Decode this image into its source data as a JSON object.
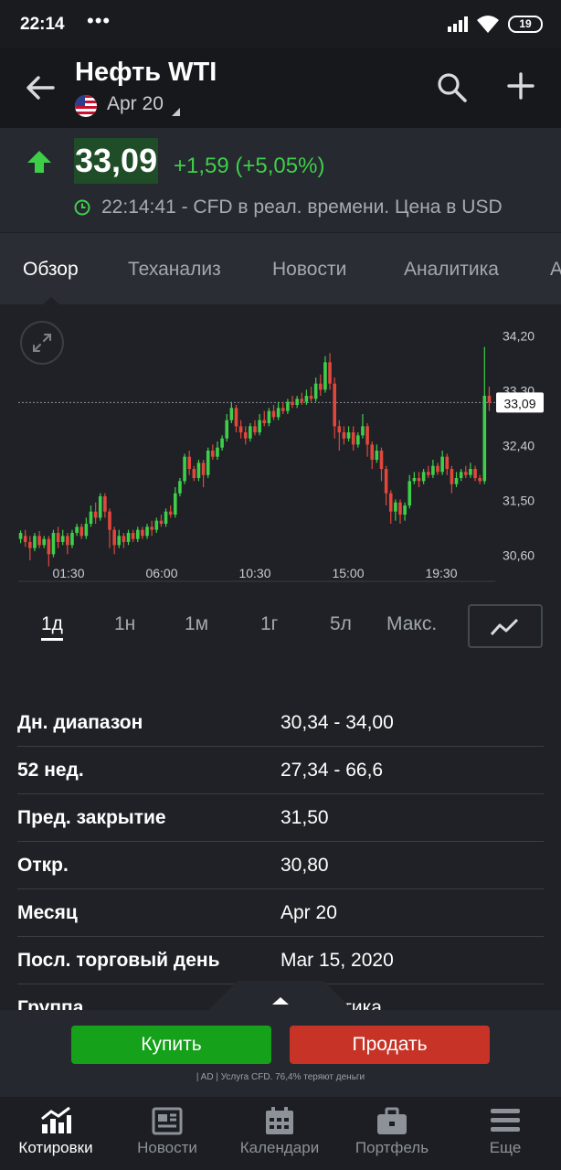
{
  "status_bar": {
    "time": "22:14",
    "dots": "•••",
    "battery": "19"
  },
  "header": {
    "title": "Нефть WTI",
    "contract": "Apr 20"
  },
  "quote": {
    "price": "33,09",
    "change": "+1,59 (+5,05%)",
    "timeline": "22:14:41 - CFD в реал. времени. Цена в USD"
  },
  "tabs": [
    {
      "label": "Обзор",
      "active": true
    },
    {
      "label": "Теханализ"
    },
    {
      "label": "Новости"
    },
    {
      "label": "Аналитика"
    },
    {
      "label": "А"
    }
  ],
  "chart_data": {
    "type": "candlestick",
    "y_tick_labels": [
      "34,20",
      "33,30",
      "32,40",
      "31,50",
      "30,60"
    ],
    "y_ticks": [
      34.2,
      33.3,
      32.4,
      31.5,
      30.6
    ],
    "ylim": [
      30.35,
      34.4
    ],
    "x_tick_labels": [
      "01:30",
      "06:00",
      "10:30",
      "15:00",
      "19:30"
    ],
    "last_price_label": "33,09",
    "last_price": 33.09,
    "candles": [
      [
        30.85,
        30.95,
        30.78,
        30.99
      ],
      [
        30.9,
        30.8,
        30.72,
        31.0
      ],
      [
        30.8,
        30.7,
        30.5,
        30.9
      ],
      [
        30.7,
        30.9,
        30.65,
        30.95
      ],
      [
        30.9,
        30.75,
        30.7,
        30.98
      ],
      [
        30.75,
        30.85,
        30.7,
        30.9
      ],
      [
        30.85,
        30.6,
        30.4,
        30.9
      ],
      [
        30.6,
        30.95,
        30.55,
        31.0
      ],
      [
        30.95,
        30.8,
        30.7,
        31.05
      ],
      [
        30.8,
        30.9,
        30.75,
        31.0
      ],
      [
        30.9,
        30.75,
        30.6,
        30.95
      ],
      [
        30.75,
        30.95,
        30.7,
        31.0
      ],
      [
        30.95,
        31.05,
        30.9,
        31.1
      ],
      [
        31.05,
        30.9,
        30.85,
        31.1
      ],
      [
        30.9,
        31.1,
        30.85,
        31.2
      ],
      [
        31.1,
        31.3,
        31.05,
        31.4
      ],
      [
        31.3,
        31.2,
        31.1,
        31.45
      ],
      [
        31.2,
        31.55,
        31.15,
        31.6
      ],
      [
        31.55,
        31.3,
        31.2,
        31.6
      ],
      [
        31.3,
        31.0,
        30.7,
        31.35
      ],
      [
        31.0,
        30.75,
        30.6,
        31.05
      ],
      [
        30.75,
        30.9,
        30.7,
        31.0
      ],
      [
        30.9,
        30.8,
        30.7,
        30.95
      ],
      [
        30.8,
        30.95,
        30.75,
        31.0
      ],
      [
        30.95,
        30.85,
        30.8,
        31.0
      ],
      [
        30.85,
        31.0,
        30.8,
        31.05
      ],
      [
        31.0,
        30.9,
        30.85,
        31.05
      ],
      [
        30.9,
        31.05,
        30.85,
        31.1
      ],
      [
        31.05,
        31.0,
        30.9,
        31.15
      ],
      [
        31.0,
        31.15,
        30.95,
        31.2
      ],
      [
        31.15,
        31.1,
        31.05,
        31.25
      ],
      [
        31.1,
        31.3,
        31.05,
        31.35
      ],
      [
        31.3,
        31.25,
        31.2,
        31.4
      ],
      [
        31.25,
        31.6,
        31.2,
        31.7
      ],
      [
        31.6,
        31.8,
        31.55,
        31.85
      ],
      [
        31.8,
        32.2,
        31.75,
        32.25
      ],
      [
        32.2,
        32.0,
        31.9,
        32.3
      ],
      [
        32.0,
        31.85,
        31.8,
        32.05
      ],
      [
        31.85,
        32.1,
        31.8,
        32.15
      ],
      [
        32.1,
        31.9,
        31.7,
        32.15
      ],
      [
        31.9,
        32.3,
        31.85,
        32.35
      ],
      [
        32.3,
        32.2,
        32.15,
        32.4
      ],
      [
        32.2,
        32.35,
        32.15,
        32.45
      ],
      [
        32.35,
        32.5,
        32.3,
        32.55
      ],
      [
        32.5,
        32.8,
        32.45,
        32.9
      ],
      [
        32.8,
        33.0,
        32.75,
        33.1
      ],
      [
        33.0,
        32.7,
        32.6,
        33.05
      ],
      [
        32.7,
        32.6,
        32.5,
        32.8
      ],
      [
        32.6,
        32.5,
        32.4,
        32.7
      ],
      [
        32.5,
        32.7,
        32.45,
        32.75
      ],
      [
        32.7,
        32.6,
        32.55,
        32.8
      ],
      [
        32.6,
        32.8,
        32.55,
        32.9
      ],
      [
        32.8,
        32.75,
        32.7,
        32.95
      ],
      [
        32.75,
        32.95,
        32.7,
        33.0
      ],
      [
        32.95,
        32.85,
        32.8,
        33.05
      ],
      [
        32.85,
        33.0,
        32.8,
        33.1
      ],
      [
        33.0,
        32.95,
        32.9,
        33.1
      ],
      [
        32.95,
        33.1,
        32.9,
        33.15
      ],
      [
        33.1,
        33.05,
        33.0,
        33.2
      ],
      [
        33.05,
        33.15,
        33.0,
        33.2
      ],
      [
        33.15,
        33.1,
        33.05,
        33.25
      ],
      [
        33.1,
        33.2,
        33.05,
        33.3
      ],
      [
        33.2,
        33.15,
        33.1,
        33.35
      ],
      [
        33.15,
        33.4,
        33.1,
        33.5
      ],
      [
        33.4,
        33.3,
        33.2,
        33.55
      ],
      [
        33.3,
        33.75,
        33.25,
        33.85
      ],
      [
        33.75,
        33.4,
        33.3,
        33.9
      ],
      [
        33.4,
        32.7,
        32.5,
        33.5
      ],
      [
        32.7,
        32.6,
        32.3,
        32.8
      ],
      [
        32.6,
        32.5,
        32.4,
        32.7
      ],
      [
        32.5,
        32.6,
        32.45,
        32.7
      ],
      [
        32.6,
        32.4,
        32.3,
        32.7
      ],
      [
        32.4,
        32.55,
        32.35,
        32.6
      ],
      [
        32.55,
        32.7,
        32.5,
        32.9
      ],
      [
        32.7,
        32.4,
        32.2,
        32.75
      ],
      [
        32.4,
        32.15,
        32.0,
        32.45
      ],
      [
        32.15,
        32.3,
        32.1,
        32.4
      ],
      [
        32.3,
        32.0,
        31.8,
        32.35
      ],
      [
        32.0,
        31.6,
        31.4,
        32.05
      ],
      [
        31.6,
        31.3,
        31.1,
        31.65
      ],
      [
        31.3,
        31.45,
        31.15,
        31.5
      ],
      [
        31.45,
        31.25,
        31.1,
        31.5
      ],
      [
        31.25,
        31.4,
        31.15,
        31.45
      ],
      [
        31.4,
        31.8,
        31.35,
        31.9
      ],
      [
        31.8,
        31.85,
        31.75,
        31.95
      ],
      [
        31.85,
        31.8,
        31.7,
        31.95
      ],
      [
        31.8,
        31.95,
        31.75,
        32.0
      ],
      [
        31.95,
        31.9,
        31.85,
        32.05
      ],
      [
        31.9,
        32.05,
        31.85,
        32.15
      ],
      [
        32.05,
        31.95,
        31.9,
        32.1
      ],
      [
        31.95,
        32.2,
        31.9,
        32.3
      ],
      [
        32.2,
        32.0,
        31.9,
        32.25
      ],
      [
        32.0,
        31.75,
        31.6,
        32.05
      ],
      [
        31.75,
        31.85,
        31.7,
        31.95
      ],
      [
        31.85,
        31.95,
        31.8,
        32.0
      ],
      [
        31.95,
        31.9,
        31.85,
        32.05
      ],
      [
        31.9,
        32.0,
        31.85,
        32.1
      ],
      [
        32.0,
        31.85,
        31.8,
        32.05
      ],
      [
        31.85,
        31.8,
        31.75,
        31.9
      ],
      [
        31.8,
        33.2,
        31.75,
        34.0
      ],
      [
        33.2,
        33.09,
        32.95,
        33.35
      ]
    ]
  },
  "ranges": [
    {
      "label": "1д",
      "active": true
    },
    {
      "label": "1н"
    },
    {
      "label": "1м"
    },
    {
      "label": "1г"
    },
    {
      "label": "5л"
    },
    {
      "label": "Макс."
    }
  ],
  "stats": [
    {
      "label": "Дн. диапазон",
      "value": "30,34 - 34,00"
    },
    {
      "label": "52 нед.",
      "value": "27,34 - 66,6"
    },
    {
      "label": "Пред. закрытие",
      "value": "31,50"
    },
    {
      "label": "Откр.",
      "value": "30,80"
    },
    {
      "label": "Месяц",
      "value": "Apr 20"
    },
    {
      "label": "Посл. торговый день",
      "value": "Mar 15, 2020"
    },
    {
      "label": "Группа",
      "value": "Энергетика"
    }
  ],
  "actions": {
    "buy": "Купить",
    "sell": "Продать",
    "disclaimer": "| AD | Услуга CFD. 76,4% теряют деньги"
  },
  "colors": {
    "up": "#3ecf4a",
    "down": "#e2473c",
    "buy": "#16a11a",
    "sell": "#c73427"
  },
  "bottom_nav": [
    {
      "label": "Котировки",
      "icon": "chart-up-icon",
      "active": true
    },
    {
      "label": "Новости",
      "icon": "newspaper-icon"
    },
    {
      "label": "Календари",
      "icon": "calendar-icon"
    },
    {
      "label": "Портфель",
      "icon": "briefcase-icon"
    },
    {
      "label": "Еще",
      "icon": "menu-icon"
    }
  ]
}
